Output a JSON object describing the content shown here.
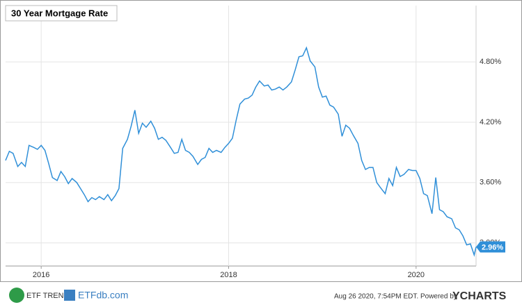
{
  "chart_data": {
    "type": "line",
    "title": "30 Year Mortgage Rate",
    "xlim": [
      2015.62,
      2020.64
    ],
    "xticks": [
      2016,
      2018,
      2020
    ],
    "ylim": [
      2.77,
      5.36
    ],
    "yticks": [
      {
        "value": 3.0,
        "label": "3.00%"
      },
      {
        "value": 3.6,
        "label": "3.60%"
      },
      {
        "value": 4.2,
        "label": "4.20%"
      },
      {
        "value": 4.8,
        "label": "4.80%"
      }
    ],
    "grid": true,
    "series": [
      {
        "name": "30 Year Mortgage Rate",
        "color": "#2f8fd8",
        "x": [
          2015.62,
          2015.66,
          2015.7,
          2015.75,
          2015.79,
          2015.83,
          2015.87,
          2015.92,
          2015.96,
          2016.0,
          2016.04,
          2016.08,
          2016.12,
          2016.17,
          2016.21,
          2016.25,
          2016.29,
          2016.33,
          2016.38,
          2016.42,
          2016.46,
          2016.5,
          2016.54,
          2016.58,
          2016.62,
          2016.67,
          2016.71,
          2016.75,
          2016.79,
          2016.83,
          2016.87,
          2016.92,
          2016.96,
          2017.0,
          2017.04,
          2017.08,
          2017.12,
          2017.17,
          2017.21,
          2017.25,
          2017.29,
          2017.33,
          2017.38,
          2017.42,
          2017.46,
          2017.5,
          2017.54,
          2017.58,
          2017.62,
          2017.67,
          2017.71,
          2017.75,
          2017.79,
          2017.83,
          2017.87,
          2017.92,
          2017.96,
          2018.0,
          2018.04,
          2018.08,
          2018.12,
          2018.17,
          2018.21,
          2018.25,
          2018.29,
          2018.33,
          2018.38,
          2018.42,
          2018.46,
          2018.5,
          2018.54,
          2018.58,
          2018.62,
          2018.67,
          2018.71,
          2018.75,
          2018.79,
          2018.83,
          2018.87,
          2018.92,
          2018.96,
          2019.0,
          2019.04,
          2019.08,
          2019.12,
          2019.17,
          2019.21,
          2019.25,
          2019.29,
          2019.33,
          2019.38,
          2019.42,
          2019.46,
          2019.5,
          2019.54,
          2019.58,
          2019.62,
          2019.67,
          2019.71,
          2019.75,
          2019.79,
          2019.83,
          2019.87,
          2019.92,
          2019.96,
          2020.0,
          2020.04,
          2020.08,
          2020.12,
          2020.17,
          2020.21,
          2020.25,
          2020.29,
          2020.33,
          2020.38,
          2020.42,
          2020.46,
          2020.5,
          2020.54,
          2020.58,
          2020.62,
          2020.64
        ],
        "values": [
          3.82,
          3.91,
          3.89,
          3.76,
          3.8,
          3.76,
          3.97,
          3.95,
          3.93,
          3.97,
          3.92,
          3.79,
          3.65,
          3.62,
          3.71,
          3.66,
          3.59,
          3.64,
          3.6,
          3.54,
          3.48,
          3.41,
          3.45,
          3.43,
          3.46,
          3.43,
          3.48,
          3.42,
          3.47,
          3.54,
          3.94,
          4.03,
          4.16,
          4.32,
          4.09,
          4.19,
          4.15,
          4.21,
          4.14,
          4.03,
          4.05,
          4.02,
          3.95,
          3.89,
          3.9,
          4.03,
          3.92,
          3.9,
          3.86,
          3.78,
          3.83,
          3.85,
          3.94,
          3.9,
          3.92,
          3.9,
          3.95,
          3.99,
          4.04,
          4.22,
          4.38,
          4.43,
          4.44,
          4.47,
          4.55,
          4.61,
          4.56,
          4.57,
          4.52,
          4.53,
          4.55,
          4.52,
          4.55,
          4.6,
          4.72,
          4.85,
          4.86,
          4.94,
          4.81,
          4.75,
          4.55,
          4.45,
          4.46,
          4.37,
          4.35,
          4.28,
          4.06,
          4.17,
          4.14,
          4.07,
          3.99,
          3.82,
          3.73,
          3.75,
          3.75,
          3.6,
          3.55,
          3.49,
          3.64,
          3.57,
          3.75,
          3.66,
          3.68,
          3.73,
          3.72,
          3.72,
          3.64,
          3.49,
          3.47,
          3.29,
          3.65,
          3.33,
          3.31,
          3.26,
          3.24,
          3.15,
          3.13,
          3.07,
          2.98,
          2.99,
          2.88,
          2.96
        ]
      }
    ],
    "current_value": {
      "value": 2.96,
      "label": "2.96%"
    }
  },
  "footer": {
    "brand_left": "ETF TRENDS",
    "brand_right": "ETFdb.com",
    "timestamp": "Aug 26 2020, 7:54PM EDT.  Powered by",
    "powered": "YCHARTS"
  }
}
